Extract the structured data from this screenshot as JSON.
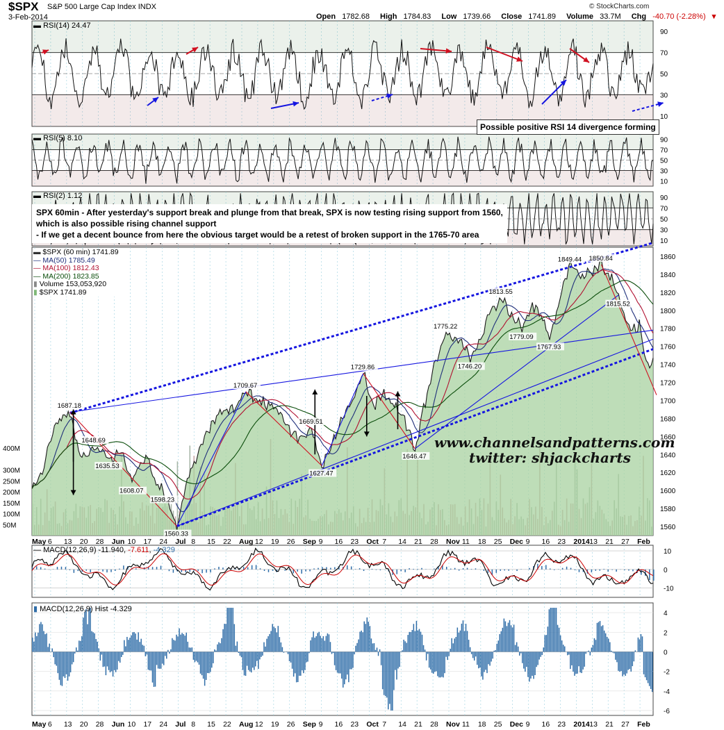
{
  "header": {
    "symbol": "$SPX",
    "name": "S&P 500 Large Cap Index",
    "exchange": "INDX",
    "date": "3-Feb-2014",
    "open_label": "Open",
    "open": "1782.68",
    "high_label": "High",
    "high": "1784.83",
    "low_label": "Low",
    "low": "1739.66",
    "close_label": "Close",
    "close": "1741.89",
    "volume_label": "Volume",
    "volume": "33.7M",
    "chg_label": "Chg",
    "chg": "-40.70 (-2.28%)",
    "brand": "© StockCharts.com"
  },
  "annotations": {
    "rsi_note": "Possible positive RSI 14 divergence forming",
    "main_note_lines": [
      "SPX 60min - After yesterday's support break and plunge from that break, SPX is now testing rising support from 1560,",
      "which is also possible rising channel support",
      "- If we get a decent bounce from here the obvious target would be a retest of broken support in the 1765-70 area"
    ]
  },
  "watermark": {
    "line1": "www.channelsandpatterns.com",
    "line2": "twitter: shjackcharts"
  },
  "colors": {
    "price_fill": "#a8d2a0",
    "price_line": "#1a1a1a",
    "ma50": "#1f2f7a",
    "ma100": "#b01030",
    "ma200": "#0b4d0b",
    "trendline_blue": "#1515e0",
    "trendline_red": "#d01020",
    "macd_hist": "#2f6da8",
    "rsi_over": "#5d8a58",
    "rsi_under": "#9b5555",
    "grid": "#99d0e0"
  },
  "chart_data": [
    {
      "panel": "RSI(14)",
      "type": "line",
      "label": "RSI(14)",
      "value": "24.47",
      "y_ticks": [
        10,
        30,
        50,
        70,
        90
      ],
      "ylim": [
        0,
        100
      ],
      "reference_lines": [
        30,
        50,
        70
      ]
    },
    {
      "panel": "RSI(5)",
      "type": "line",
      "label": "RSI(5)",
      "value": "8.10",
      "y_ticks": [
        10,
        30,
        50,
        70,
        90
      ],
      "ylim": [
        0,
        100
      ],
      "reference_lines": [
        30,
        50,
        70
      ]
    },
    {
      "panel": "RSI(2)",
      "type": "line",
      "label": "RSI(2)",
      "value": "1.12",
      "y_ticks": [
        10,
        30,
        50,
        70,
        90
      ],
      "ylim": [
        0,
        100
      ],
      "reference_lines": [
        30,
        50,
        70
      ]
    },
    {
      "panel": "price",
      "type": "area",
      "label": "$SPX (60 min)",
      "value": "1741.89",
      "legend": [
        {
          "name": "MA(50)",
          "value": "1785.49"
        },
        {
          "name": "MA(100)",
          "value": "1812.43"
        },
        {
          "name": "MA(200)",
          "value": "1823.85"
        },
        {
          "name": "Volume",
          "value": "153,053,920"
        },
        {
          "name": "$SPX",
          "value": "1741.89"
        }
      ],
      "ylim": [
        1550,
        1870
      ],
      "y_ticks": [
        1560,
        1580,
        1600,
        1620,
        1640,
        1660,
        1680,
        1700,
        1720,
        1740,
        1760,
        1780,
        1800,
        1820,
        1840,
        1860
      ],
      "volume_ticks": [
        "50M",
        "100M",
        "150M",
        "200M",
        "250M",
        "300M",
        "400M"
      ],
      "key_points": [
        {
          "t": 0,
          "v": 1598
        },
        {
          "t": 3,
          "v": 1625
        },
        {
          "t": 7,
          "v": 1676
        },
        {
          "t": 11,
          "v": 1687.18
        },
        {
          "t": 14,
          "v": 1636
        },
        {
          "t": 18,
          "v": 1648.69
        },
        {
          "t": 22,
          "v": 1635.53
        },
        {
          "t": 26,
          "v": 1640
        },
        {
          "t": 29,
          "v": 1608.07
        },
        {
          "t": 33,
          "v": 1640
        },
        {
          "t": 35,
          "v": 1615
        },
        {
          "t": 38,
          "v": 1598.23
        },
        {
          "t": 42,
          "v": 1560.33
        },
        {
          "t": 45,
          "v": 1615
        },
        {
          "t": 48,
          "v": 1640
        },
        {
          "t": 51,
          "v": 1668
        },
        {
          "t": 54,
          "v": 1685
        },
        {
          "t": 58,
          "v": 1690
        },
        {
          "t": 62,
          "v": 1709.67
        },
        {
          "t": 65,
          "v": 1700
        },
        {
          "t": 68,
          "v": 1697
        },
        {
          "t": 72,
          "v": 1688
        },
        {
          "t": 75,
          "v": 1665
        },
        {
          "t": 78,
          "v": 1655
        },
        {
          "t": 81,
          "v": 1669.51
        },
        {
          "t": 84,
          "v": 1627.47
        },
        {
          "t": 87,
          "v": 1650
        },
        {
          "t": 90,
          "v": 1680
        },
        {
          "t": 93,
          "v": 1700
        },
        {
          "t": 96,
          "v": 1729.86
        },
        {
          "t": 99,
          "v": 1695
        },
        {
          "t": 102,
          "v": 1705
        },
        {
          "t": 105,
          "v": 1695
        },
        {
          "t": 108,
          "v": 1678
        },
        {
          "t": 111,
          "v": 1646.47
        },
        {
          "t": 114,
          "v": 1700
        },
        {
          "t": 117,
          "v": 1745
        },
        {
          "t": 120,
          "v": 1775.22
        },
        {
          "t": 124,
          "v": 1765
        },
        {
          "t": 127,
          "v": 1746.2
        },
        {
          "t": 130,
          "v": 1770
        },
        {
          "t": 133,
          "v": 1800
        },
        {
          "t": 136,
          "v": 1813.55
        },
        {
          "t": 139,
          "v": 1795
        },
        {
          "t": 142,
          "v": 1779.09
        },
        {
          "t": 145,
          "v": 1808
        },
        {
          "t": 148,
          "v": 1790
        },
        {
          "t": 150,
          "v": 1767.93
        },
        {
          "t": 153,
          "v": 1815
        },
        {
          "t": 156,
          "v": 1849.44
        },
        {
          "t": 159,
          "v": 1838
        },
        {
          "t": 162,
          "v": 1843
        },
        {
          "t": 165,
          "v": 1850.84
        },
        {
          "t": 168,
          "v": 1838
        },
        {
          "t": 170,
          "v": 1815.52
        },
        {
          "t": 172,
          "v": 1790
        },
        {
          "t": 174,
          "v": 1778
        },
        {
          "t": 176,
          "v": 1782
        },
        {
          "t": 178,
          "v": 1741.89
        }
      ],
      "point_labels": [
        {
          "text": "1687.18",
          "t": 11,
          "v": 1687.18,
          "pos": "above"
        },
        {
          "text": "1648.69",
          "t": 18,
          "v": 1648.69,
          "pos": "above"
        },
        {
          "text": "1635.53",
          "t": 22,
          "v": 1635.53,
          "pos": "below"
        },
        {
          "text": "1608.07",
          "t": 29,
          "v": 1608.07,
          "pos": "below"
        },
        {
          "text": "1598.23",
          "t": 38,
          "v": 1598.23,
          "pos": "below"
        },
        {
          "text": "1560.33",
          "t": 42,
          "v": 1560.33,
          "pos": "below"
        },
        {
          "text": "1709.67",
          "t": 62,
          "v": 1709.67,
          "pos": "above"
        },
        {
          "text": "1669.51",
          "t": 81,
          "v": 1669.51,
          "pos": "above"
        },
        {
          "text": "1627.47",
          "t": 84,
          "v": 1627.47,
          "pos": "below"
        },
        {
          "text": "1729.86",
          "t": 96,
          "v": 1729.86,
          "pos": "above"
        },
        {
          "text": "1646.47",
          "t": 111,
          "v": 1646.47,
          "pos": "below"
        },
        {
          "text": "1775.22",
          "t": 120,
          "v": 1775.22,
          "pos": "above"
        },
        {
          "text": "1746.20",
          "t": 127,
          "v": 1746.2,
          "pos": "below"
        },
        {
          "text": "1813.55",
          "t": 136,
          "v": 1813.55,
          "pos": "above"
        },
        {
          "text": "1779.09",
          "t": 142,
          "v": 1779.09,
          "pos": "below"
        },
        {
          "text": "1767.93",
          "t": 150,
          "v": 1767.93,
          "pos": "below"
        },
        {
          "text": "1849.44",
          "t": 156,
          "v": 1849.44,
          "pos": "above"
        },
        {
          "text": "1850.84",
          "t": 165,
          "v": 1850.84,
          "pos": "above"
        },
        {
          "text": "1815.52",
          "t": 170,
          "v": 1815.52,
          "pos": "below"
        }
      ],
      "trendlines": [
        {
          "color": "blue",
          "style": "dotted",
          "from": {
            "t": 11,
            "v": 1686
          },
          "to": {
            "t": 180,
            "v": 1875
          }
        },
        {
          "color": "blue",
          "style": "dotted",
          "from": {
            "t": 42,
            "v": 1560.33
          },
          "to": {
            "t": 180,
            "v": 1757
          }
        },
        {
          "color": "blue",
          "style": "solid",
          "from": {
            "t": 11,
            "v": 1687
          },
          "to": {
            "t": 180,
            "v": 1778
          }
        },
        {
          "color": "blue",
          "style": "solid",
          "from": {
            "t": 42,
            "v": 1560.33
          },
          "to": {
            "t": 180,
            "v": 1768
          }
        },
        {
          "color": "blue",
          "style": "solid",
          "from": {
            "t": 111,
            "v": 1646.47
          },
          "to": {
            "t": 170,
            "v": 1817
          }
        },
        {
          "color": "blue",
          "style": "solid",
          "from": {
            "t": 42,
            "v": 1560.33
          },
          "to": {
            "t": 62,
            "v": 1709.67
          }
        },
        {
          "color": "blue",
          "style": "solid",
          "from": {
            "t": 84,
            "v": 1627.47
          },
          "to": {
            "t": 96,
            "v": 1729.86
          }
        },
        {
          "color": "red",
          "style": "solid",
          "from": {
            "t": 11,
            "v": 1687
          },
          "to": {
            "t": 42,
            "v": 1560.33
          }
        },
        {
          "color": "red",
          "style": "solid",
          "from": {
            "t": 62,
            "v": 1709.67
          },
          "to": {
            "t": 84,
            "v": 1627.47
          }
        },
        {
          "color": "red",
          "style": "solid",
          "from": {
            "t": 96,
            "v": 1729.86
          },
          "to": {
            "t": 111,
            "v": 1646.47
          }
        },
        {
          "color": "red",
          "style": "solid",
          "from": {
            "t": 165,
            "v": 1850.84
          },
          "to": {
            "t": 181,
            "v": 1706
          }
        }
      ],
      "arrows": [
        {
          "t": 12,
          "from": 1632,
          "to": 1690
        },
        {
          "t": 12,
          "from": 1680,
          "to": 1595
        },
        {
          "t": 82,
          "from": 1640,
          "to": 1712
        },
        {
          "t": 97,
          "from": 1705,
          "to": 1660
        },
        {
          "t": 106,
          "from": 1668,
          "to": 1710
        }
      ]
    },
    {
      "panel": "MACD",
      "type": "line",
      "label": "MACD(12,26,9)",
      "values": [
        "-11.940",
        "-7.611",
        "-4.329"
      ],
      "y_ticks": [
        -10,
        0,
        10
      ],
      "ylim": [
        -15,
        13
      ]
    },
    {
      "panel": "MACD Hist",
      "type": "bar",
      "label": "MACD(12,26,9) Hist",
      "value": "-4.329",
      "y_ticks": [
        -6,
        -4,
        -2,
        0,
        2,
        4
      ],
      "ylim": [
        -6.5,
        5
      ]
    }
  ],
  "x_axis": {
    "labels": [
      "May",
      "6",
      "13",
      "20",
      "28",
      "Jun",
      "10",
      "17",
      "24",
      "Jul",
      "8",
      "15",
      "22",
      "Aug",
      "12",
      "19",
      "26",
      "Sep",
      "9",
      "16",
      "23",
      "Oct",
      "7",
      "14",
      "21",
      "28",
      "Nov",
      "11",
      "18",
      "25",
      "Dec",
      "9",
      "16",
      "23",
      "2014",
      "13",
      "21",
      "27",
      "Feb"
    ],
    "bold": [
      "May",
      "Jun",
      "Jul",
      "Aug",
      "Sep",
      "Oct",
      "Nov",
      "Dec",
      "2014",
      "Feb"
    ]
  }
}
